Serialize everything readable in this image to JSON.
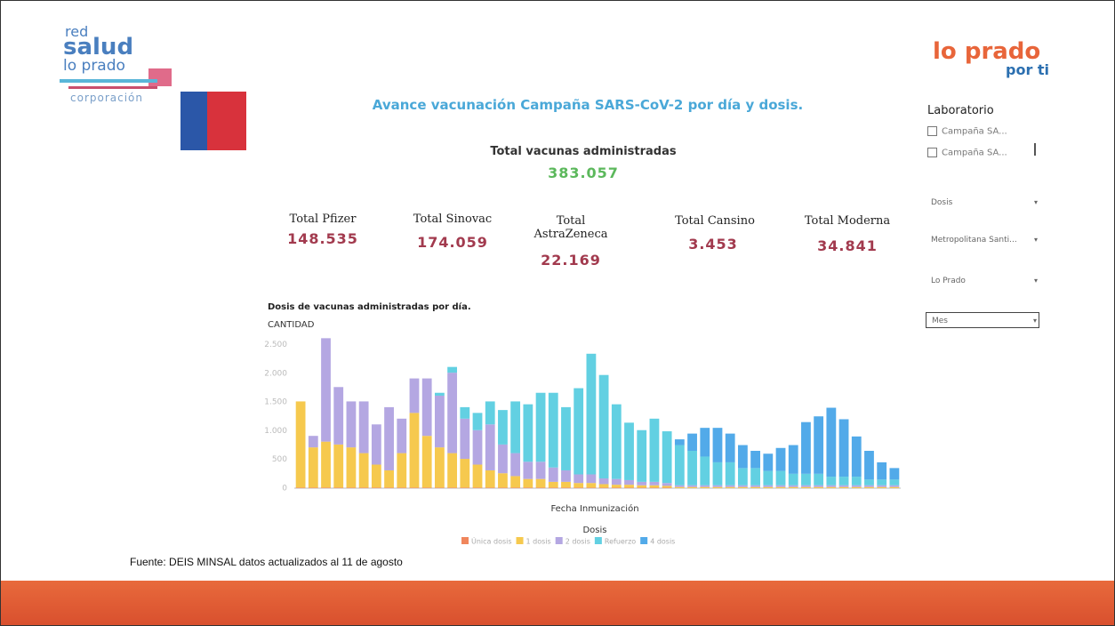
{
  "header": {
    "logo_left": [
      "red",
      "salud",
      "lo prado",
      "corporación"
    ],
    "logo_right": [
      "lo prado",
      "por ti"
    ],
    "title": "Avance vacunación Campaña SARS-CoV-2 por día y dosis."
  },
  "total": {
    "label": "Total vacunas administradas",
    "value": "383.057"
  },
  "kpis": [
    {
      "label": "Total Pfizer",
      "value": "148.535"
    },
    {
      "label": "Total Sinovac",
      "value": "174.059"
    },
    {
      "label": "Total AstraZeneca",
      "value": "22.169"
    },
    {
      "label": "Total Cansino",
      "value": "3.453"
    },
    {
      "label": "Total Moderna",
      "value": "34.841"
    }
  ],
  "filters": {
    "title": "Laboratorio",
    "checkboxes": [
      "Campaña SA...",
      "Campaña SA..."
    ],
    "dropdowns": [
      "Dosis",
      "Metropolitana Santi...",
      "Lo Prado",
      "Mes"
    ]
  },
  "footer": "Fuente: DEIS MINSAL datos actualizados al 11 de agosto",
  "chart_data": {
    "type": "stacked_bar",
    "title": "Dosis de vacunas administradas por día.",
    "y_label": "CANTIDAD",
    "x_label": "Fecha Inmunización",
    "legend_title": "Dosis",
    "categories": [
      null,
      null,
      null,
      null,
      null,
      null,
      null,
      null,
      null,
      null,
      null,
      null,
      null,
      null,
      null,
      null,
      null,
      null,
      null,
      null,
      null,
      null,
      null,
      null,
      null,
      null,
      null,
      null,
      null,
      null,
      null,
      null,
      null,
      null,
      null,
      null,
      null,
      null,
      null,
      null,
      null,
      null,
      null,
      null,
      null,
      null,
      null,
      null
    ],
    "ylim": [
      0,
      2600
    ],
    "yticks": [
      0,
      500,
      {
        "value": 1000,
        "label": "1.000"
      },
      {
        "value": 1500,
        "label": "1.500"
      },
      {
        "value": 2000,
        "label": "2.000"
      },
      {
        "value": 2500,
        "label": "2.500"
      }
    ],
    "series": [
      {
        "name": "Única dosis",
        "color": "#f0865c",
        "values": [
          10,
          10,
          10,
          10,
          10,
          10,
          10,
          10,
          10,
          10,
          10,
          10,
          10,
          10,
          10,
          10,
          10,
          10,
          10,
          10,
          10,
          10,
          10,
          10,
          10,
          10,
          10,
          10,
          10,
          10,
          0,
          0,
          0,
          0,
          0,
          0,
          0,
          0,
          0,
          0,
          0,
          0,
          0,
          0,
          0,
          0,
          0,
          0
        ]
      },
      {
        "name": "1 dosis",
        "color": "#f6c94e",
        "values": [
          1500,
          700,
          800,
          750,
          700,
          600,
          400,
          300,
          600,
          1300,
          900,
          700,
          600,
          500,
          400,
          300,
          250,
          200,
          150,
          150,
          100,
          100,
          80,
          80,
          60,
          50,
          50,
          40,
          40,
          30,
          20,
          20,
          20,
          20,
          20,
          20,
          20,
          20,
          20,
          20,
          20,
          20,
          20,
          20,
          20,
          20,
          20,
          20
        ]
      },
      {
        "name": "2 dosis",
        "color": "#b4a7e2",
        "values": [
          0,
          200,
          1800,
          1000,
          800,
          900,
          700,
          1100,
          600,
          600,
          1000,
          900,
          1400,
          700,
          600,
          800,
          500,
          400,
          300,
          300,
          250,
          200,
          150,
          150,
          100,
          100,
          80,
          60,
          60,
          50,
          30,
          30,
          30,
          30,
          30,
          30,
          30,
          30,
          30,
          30,
          30,
          30,
          30,
          30,
          30,
          30,
          30,
          30
        ]
      },
      {
        "name": "Refuerzo",
        "color": "#62d0e2",
        "values": [
          0,
          0,
          0,
          0,
          0,
          0,
          0,
          0,
          0,
          0,
          0,
          50,
          100,
          200,
          300,
          400,
          600,
          900,
          1000,
          1200,
          1300,
          1100,
          1500,
          2100,
          1800,
          1300,
          1000,
          900,
          1100,
          900,
          700,
          600,
          500,
          400,
          400,
          300,
          300,
          250,
          250,
          200,
          200,
          200,
          150,
          150,
          150,
          100,
          100,
          100
        ]
      },
      {
        "name": "4 dosis",
        "color": "#52aae9",
        "values": [
          0,
          0,
          0,
          0,
          0,
          0,
          0,
          0,
          0,
          0,
          0,
          0,
          0,
          0,
          0,
          0,
          0,
          0,
          0,
          0,
          0,
          0,
          0,
          0,
          0,
          0,
          0,
          0,
          0,
          0,
          100,
          300,
          500,
          600,
          500,
          400,
          300,
          300,
          400,
          500,
          900,
          1000,
          1200,
          1000,
          700,
          500,
          300,
          200
        ]
      }
    ]
  }
}
